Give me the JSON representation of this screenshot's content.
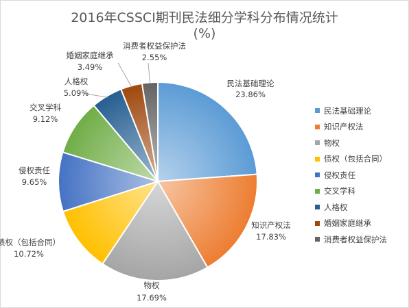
{
  "chart_data": {
    "type": "pie",
    "title_line1": "2016年CSSCI期刊民法细分学科分布情况统计",
    "title_line2": "(%)",
    "categories": [
      "民法基础理论",
      "知识产权法",
      "物权",
      "债权（包括合同）",
      "侵权责任",
      "交叉学科",
      "人格权",
      "婚姻家庭继承",
      "消费者权益保护法"
    ],
    "values": [
      23.86,
      17.83,
      17.69,
      10.72,
      9.65,
      9.12,
      5.09,
      3.49,
      2.55
    ],
    "value_labels": [
      "23.86%",
      "17.83%",
      "17.69%",
      "10.72%",
      "9.65%",
      "9.12%",
      "5.09%",
      "3.49%",
      "2.55%"
    ],
    "colors": [
      "#5b9bd5",
      "#ed7d31",
      "#a5a5a5",
      "#ffc000",
      "#4472c4",
      "#70ad47",
      "#255e91",
      "#9e480e",
      "#636363"
    ],
    "legend_position": "right"
  }
}
